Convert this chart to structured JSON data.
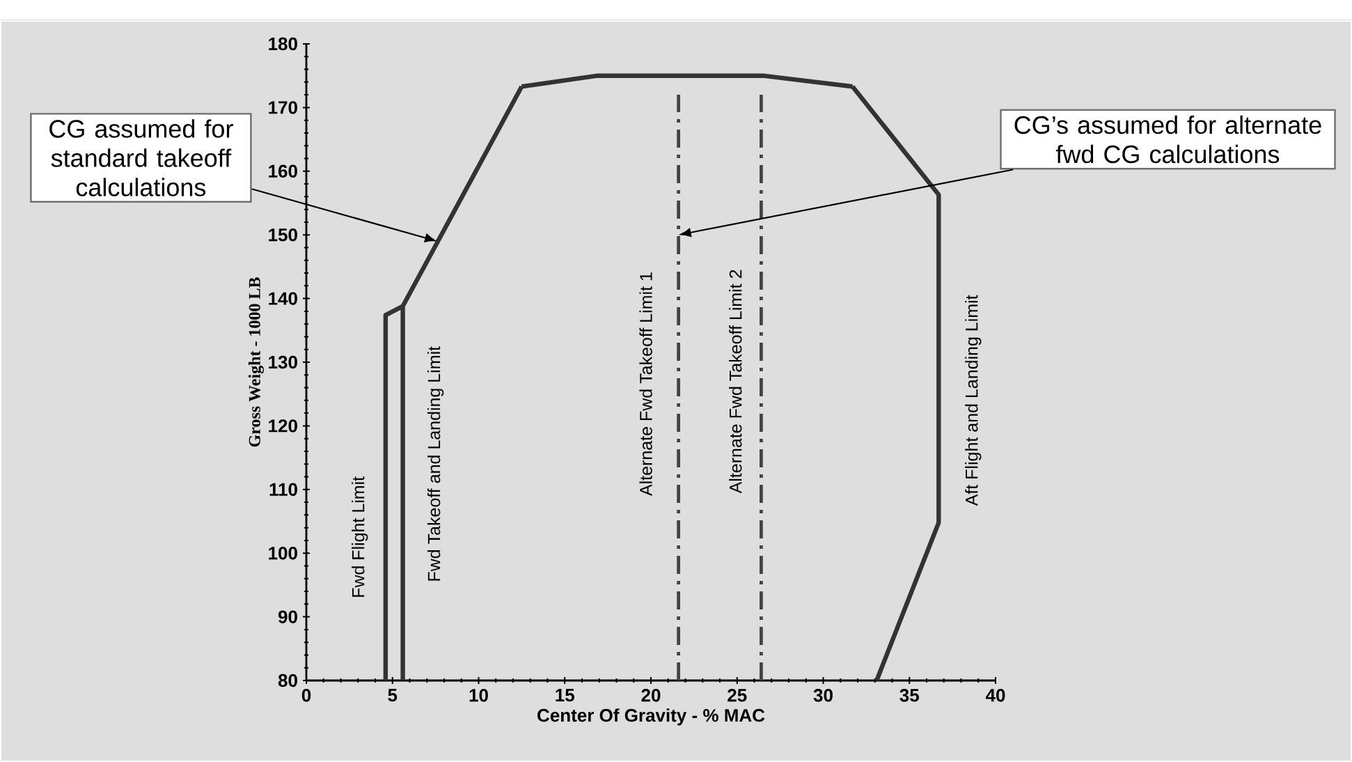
{
  "chart_data": {
    "type": "line",
    "xlabel": "Center Of Gravity - % MAC",
    "ylabel": "Gross Weight - 1000 LB",
    "xlim": [
      0,
      40
    ],
    "ylim": [
      80,
      180
    ],
    "xticks": [
      0,
      5,
      10,
      15,
      20,
      25,
      30,
      35,
      40
    ],
    "yticks": [
      80,
      90,
      100,
      110,
      120,
      130,
      140,
      150,
      160,
      170,
      180
    ],
    "grid": false,
    "legend": false,
    "series": [
      {
        "name": "Fwd Flight Limit",
        "color": "#333333",
        "line_style": "solid",
        "x": [
          4.6,
          4.6,
          5.6
        ],
        "values": [
          80,
          137.4,
          138.8
        ]
      },
      {
        "name": "Fwd Takeoff and Landing Limit",
        "color": "#333333",
        "line_style": "solid",
        "x": [
          5.6,
          5.6,
          12.5
        ],
        "values": [
          80,
          138.8,
          173.3
        ]
      },
      {
        "color": "#333333",
        "line_style": "solid",
        "x": [
          12.5,
          16.9,
          26.5,
          31.7
        ],
        "values": [
          173.3,
          175,
          175,
          173.3
        ]
      },
      {
        "name": "Alternate Fwd Takeoff Limit 1",
        "color": "#444444",
        "line_style": "dashed",
        "x": [
          21.6,
          21.6
        ],
        "values": [
          80,
          172
        ]
      },
      {
        "name": "Alternate  Fwd Takeoff Limit 2",
        "color": "#444444",
        "line_style": "dashed",
        "x": [
          26.4,
          26.4
        ],
        "values": [
          80,
          172
        ]
      },
      {
        "name": "Aft Flight and Landing Limit",
        "color": "#333333",
        "line_style": "solid",
        "x": [
          31.7,
          36.7,
          36.7,
          33.1
        ],
        "values": [
          173.3,
          156.3,
          104.8,
          80
        ]
      }
    ],
    "annotations": [
      {
        "text": "CG assumed for standard takeoff calculations",
        "x": 7.6,
        "y": 149
      },
      {
        "text": "CG’s assumed for alternate fwd CG calculations",
        "x": 21.6,
        "y": 150
      }
    ]
  }
}
